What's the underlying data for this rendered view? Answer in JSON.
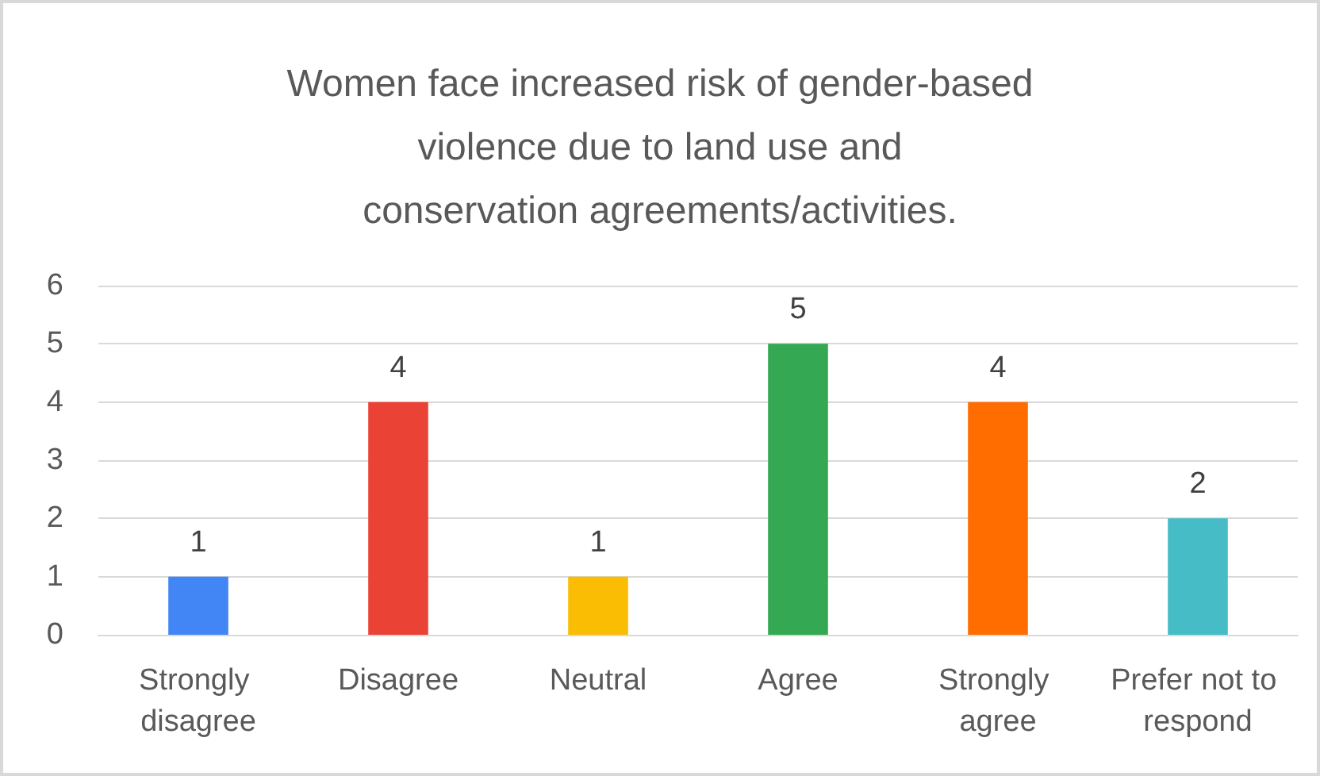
{
  "chart_data": {
    "type": "bar",
    "title": "Women face increased risk of gender-based violence due to land use and conservation agreements/activities.",
    "categories": [
      "Strongly disagree",
      "Disagree",
      "Neutral",
      "Agree",
      "Strongly agree",
      "Prefer not to respond"
    ],
    "values": [
      1,
      4,
      1,
      5,
      4,
      2
    ],
    "colors": [
      "#4285f4",
      "#ea4335",
      "#fbbc04",
      "#34a853",
      "#ff6d01",
      "#46bdc6"
    ],
    "ylim": [
      0,
      6
    ],
    "yticks": [
      0,
      1,
      2,
      3,
      4,
      5,
      6
    ],
    "grid": "y",
    "data_labels": true
  }
}
